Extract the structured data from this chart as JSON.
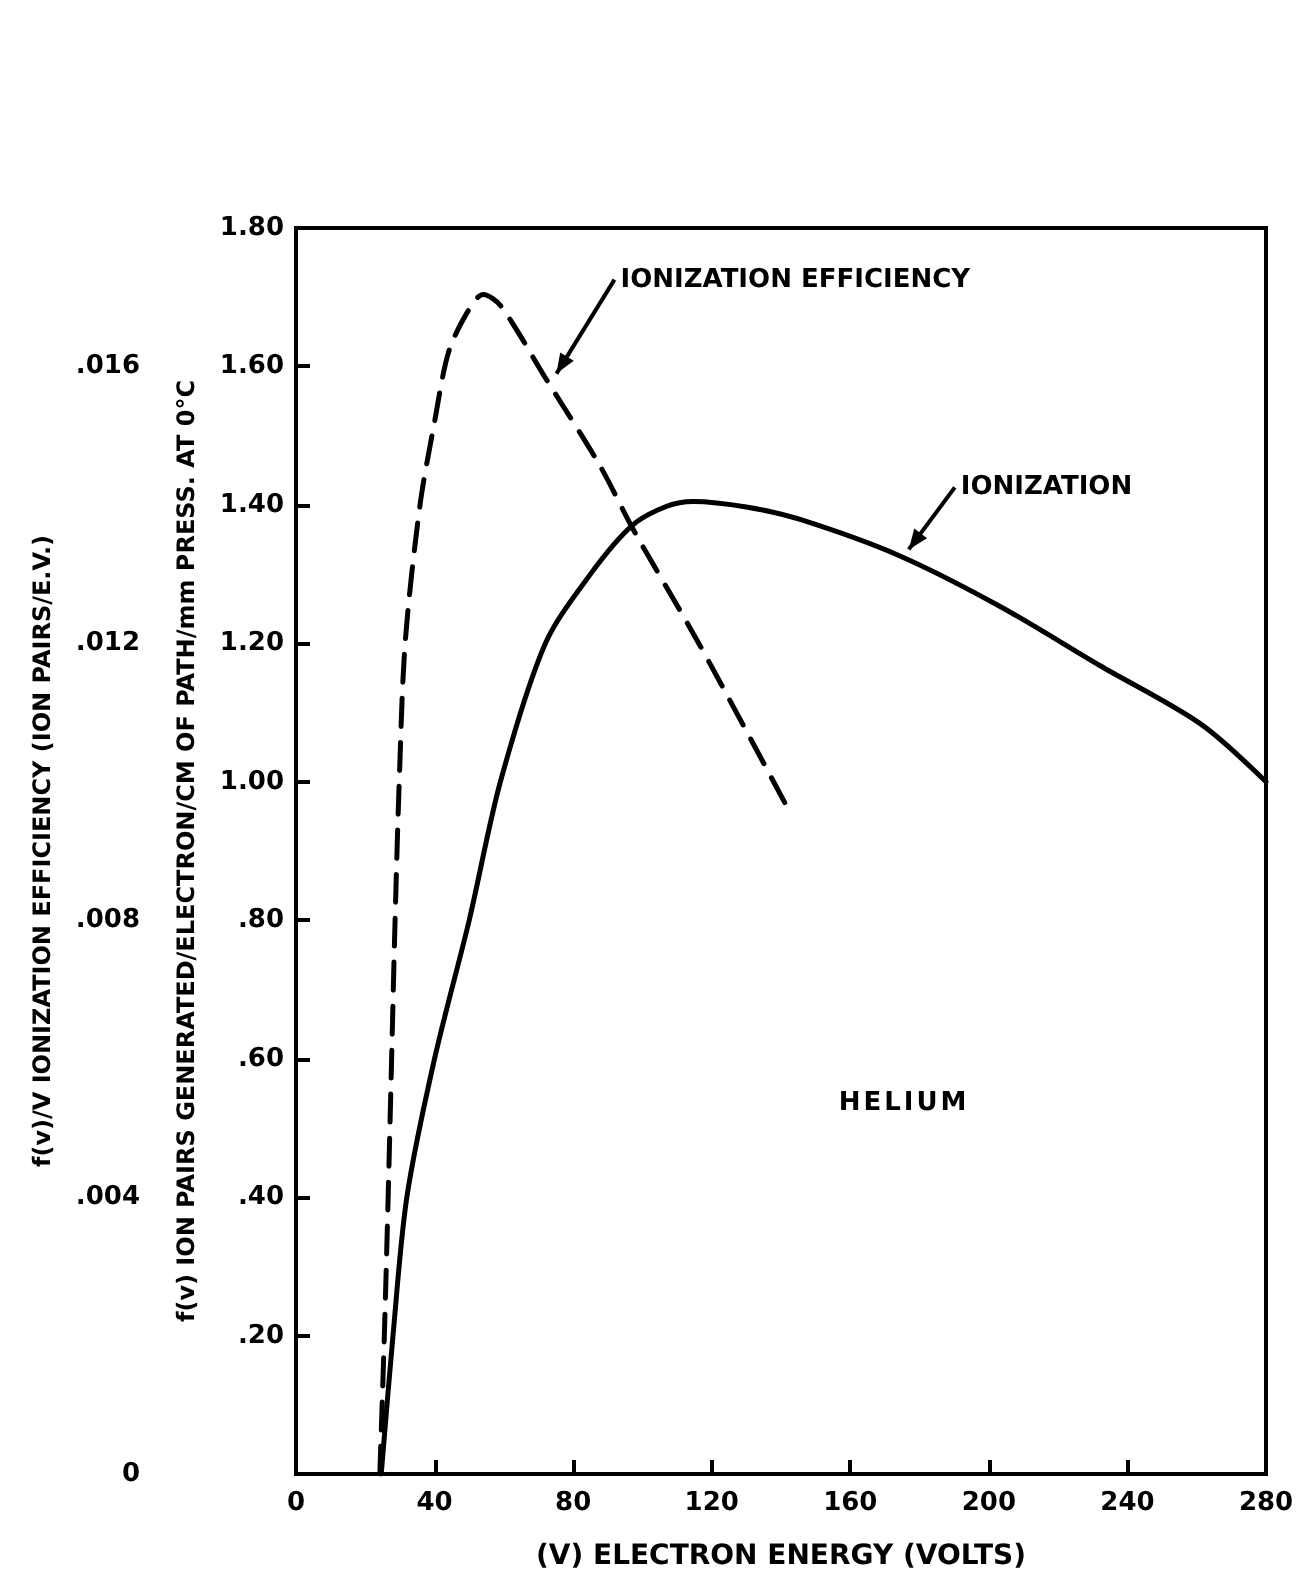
{
  "chart_data": {
    "type": "line",
    "xlabel": "(V) ELECTRON ENERGY (VOLTS)",
    "ylabel": "f(v) ION PAIRS GENERATED/ELECTRON/CM OF PATH/mm PRESS. AT 0°C",
    "y2label": "f(v)/V IONIZATION EFFICIENCY (ION PAIRS/E.V.)",
    "xlim": [
      0,
      280
    ],
    "xticks": [
      0,
      40,
      80,
      120,
      160,
      200,
      240,
      280
    ],
    "ylim": [
      0,
      1.8
    ],
    "yticks": [
      {
        "value": 0,
        "label": null
      },
      {
        "value": 0.2,
        "label": ".20"
      },
      {
        "value": 0.4,
        "label": ".40"
      },
      {
        "value": 0.6,
        "label": ".60"
      },
      {
        "value": 0.8,
        "label": ".80"
      },
      {
        "value": 1.0,
        "label": "1.00"
      },
      {
        "value": 1.2,
        "label": "1.20"
      },
      {
        "value": 1.4,
        "label": "1.40"
      },
      {
        "value": 1.6,
        "label": "1.60"
      },
      {
        "value": 1.8,
        "label": "1.80"
      }
    ],
    "y2lim": [
      0,
      0.018
    ],
    "y2ticks": [
      0,
      {
        "value": 0.004,
        "label": ".004"
      },
      {
        "value": 0.008,
        "label": ".008"
      },
      {
        "value": 0.012,
        "label": ".012"
      },
      {
        "value": 0.016,
        "label": ".016"
      }
    ],
    "grid": false,
    "legend": false,
    "marker": "none",
    "annotations": [
      "HELIUM"
    ],
    "series": [
      {
        "name": "IONIZATION",
        "color": "#000000",
        "line_style": "solid",
        "x": [
          24.6,
          28,
          32,
          40,
          50,
          59,
          72,
          85,
          97,
          107,
          114.7,
          130,
          145.5,
          174,
          203,
          232,
          261,
          280
        ],
        "values": [
          0,
          0.2,
          0.4,
          0.6,
          0.8,
          1.0,
          1.2,
          1.3,
          1.37,
          1.398,
          1.405,
          1.397,
          1.379,
          1.327,
          1.254,
          1.168,
          1.084,
          1.0
        ]
      },
      {
        "name": "IONIZATION EFFICIENCY",
        "color": "#000000",
        "line_style": "dashed",
        "axis": "y2",
        "x": [
          24.2,
          25.5,
          26.6,
          27.6,
          28.6,
          29.8,
          31.5,
          35.8,
          40,
          44,
          49.3,
          54,
          59,
          72.3,
          87.8,
          97.4,
          116.6,
          141.6
        ],
        "values": [
          0,
          0.002,
          0.004,
          0.006,
          0.008,
          0.01,
          0.012,
          0.014,
          0.0152,
          0.0162,
          0.01677,
          0.01704,
          0.01688,
          0.01581,
          0.01456,
          0.01364,
          0.01197,
          0.00965
        ]
      }
    ]
  }
}
